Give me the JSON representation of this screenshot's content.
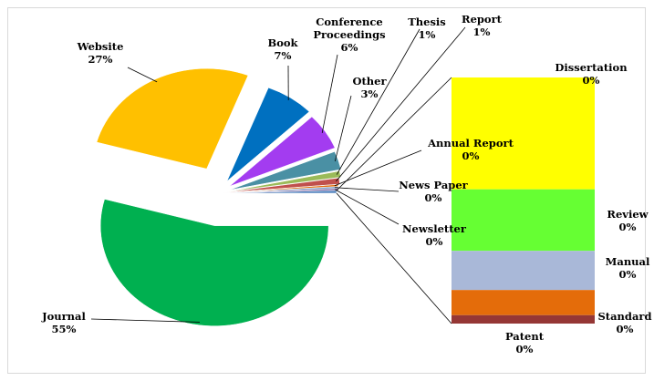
{
  "chart_data": {
    "type": "pie-of-bar",
    "categories": [
      "Newsletter",
      "News Paper",
      "Annual Report",
      "Report",
      "Thesis",
      "Other",
      "Conference Proceedings",
      "Book",
      "Website",
      "Journal"
    ],
    "values": [
      0.3,
      0.3,
      0.3,
      1,
      1,
      3,
      6,
      7,
      27,
      55
    ],
    "value_labels": [
      "0%",
      "0%",
      "0%",
      "1%",
      "1%",
      "3%",
      "6%",
      "7%",
      "27%",
      "55%"
    ],
    "colors": [
      "#8064a2",
      "#7f9fc8",
      "#e46c0a",
      "#c0504d",
      "#9bbb59",
      "#4a90a4",
      "#a33cf0",
      "#0070c0",
      "#ffc000",
      "#00b050"
    ],
    "bar_categories": [
      "Dissertation",
      "Review",
      "Manual",
      "Standard",
      "Patent"
    ],
    "bar_values": [
      0.2,
      0.11,
      0.07,
      0.045,
      0.015
    ],
    "bar_value_labels": [
      "0%",
      "0%",
      "0%",
      "0%",
      "0%"
    ],
    "bar_colors": [
      "#ffff00",
      "#66ff33",
      "#a9b8d8",
      "#e46c0a",
      "#953735"
    ]
  }
}
